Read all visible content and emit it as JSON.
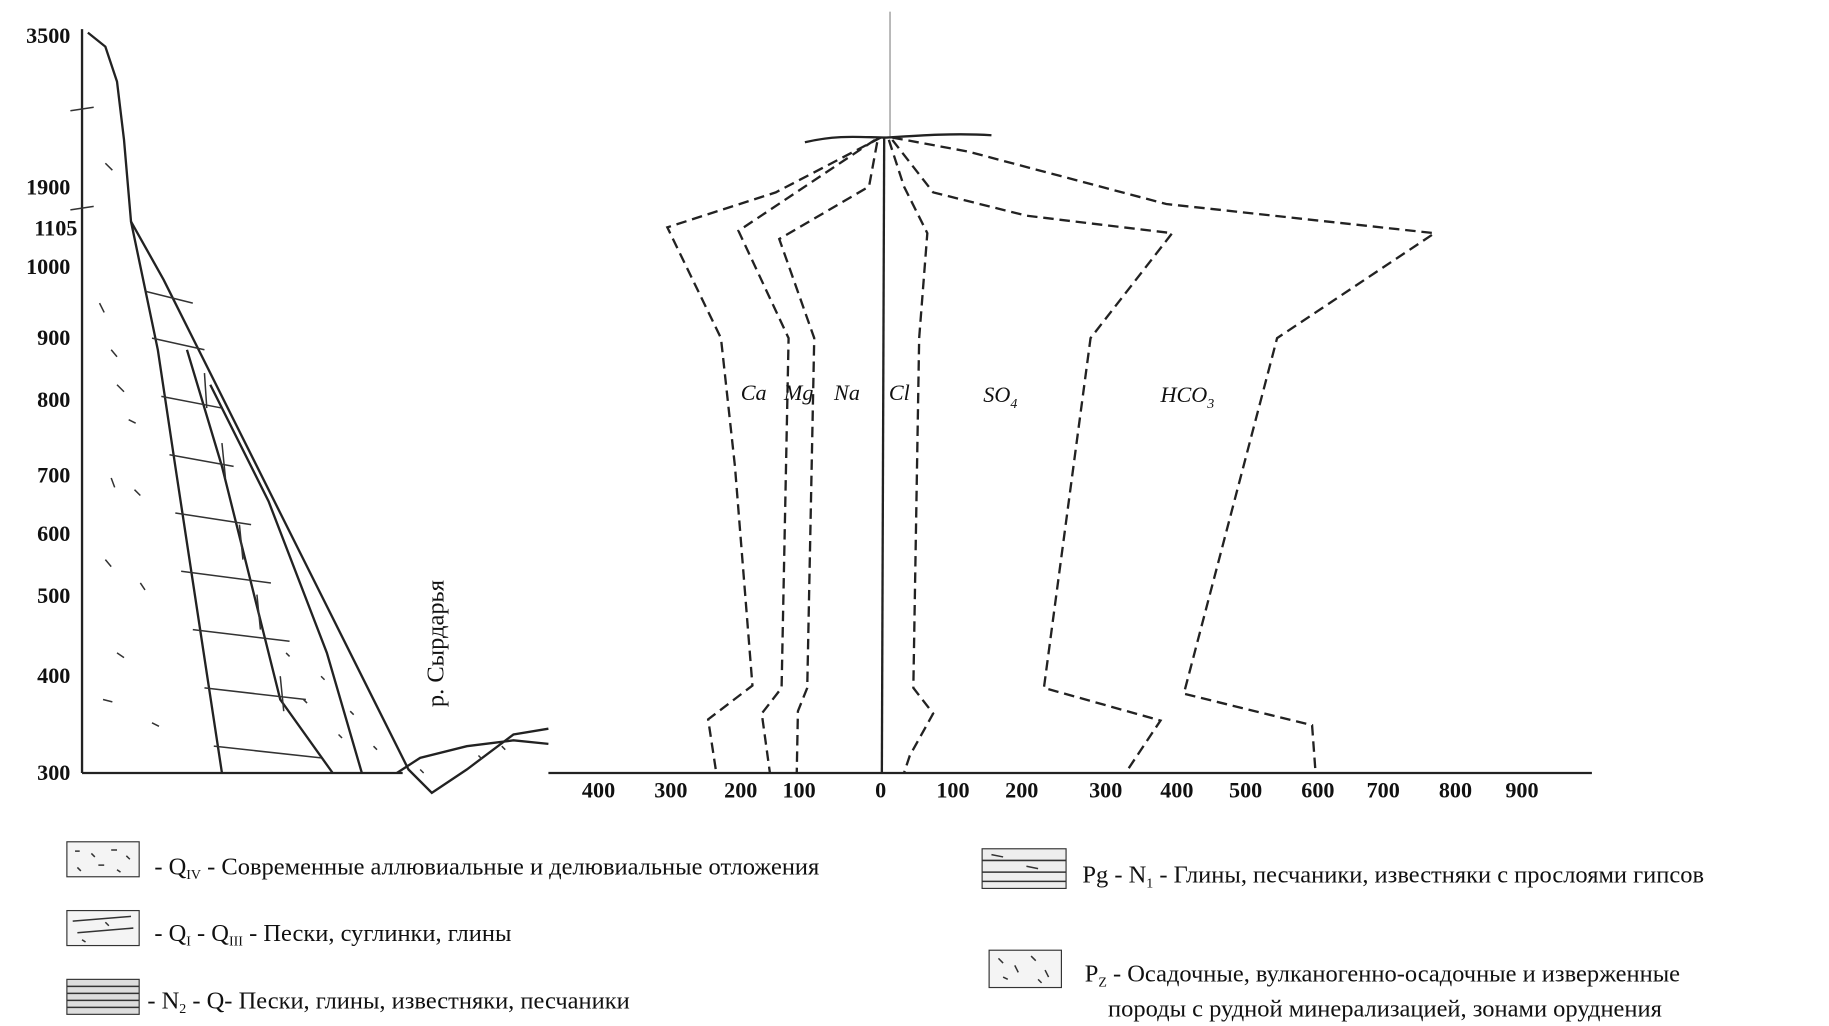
{
  "left_axis": {
    "labels": [
      "3500",
      "1900",
      "1105",
      "1000",
      "900",
      "800",
      "700",
      "600",
      "500",
      "400",
      "300"
    ]
  },
  "bottom_axis": {
    "labels": [
      "400",
      "300",
      "200",
      "100",
      "0",
      "100",
      "200",
      "300",
      "400",
      "500",
      "600",
      "700",
      "800",
      "900"
    ]
  },
  "ions": [
    {
      "text": "Ca"
    },
    {
      "text": "Mg"
    },
    {
      "text": "Na"
    },
    {
      "text": "Cl"
    },
    {
      "text": "SO",
      "sub": "4"
    },
    {
      "text": "HCO",
      "sub": "3"
    }
  ],
  "river": "р. Сырдарья",
  "legend": [
    {
      "segments": [
        {
          "text": "- Q"
        },
        {
          "sub": "IV"
        },
        {
          "text": " - Современные аллювиальные и делювиальные отложения"
        }
      ]
    },
    {
      "segments": [
        {
          "text": "- Q"
        },
        {
          "sub": "I"
        },
        {
          "text": " - Q"
        },
        {
          "sub": "III"
        },
        {
          "text": " - Пески, суглинки, глины"
        }
      ]
    },
    {
      "segments": [
        {
          "text": "- N"
        },
        {
          "sub": "2"
        },
        {
          "text": " - Q- Пески, глины, известняки, песчаники"
        }
      ]
    },
    {
      "segments": [
        {
          "text": "Pg - N"
        },
        {
          "sub": "1"
        },
        {
          "text": " - Глины, песчаники, известняки с прослоями гипсов"
        }
      ]
    },
    {
      "segments": [
        {
          "text": "P"
        },
        {
          "sub": "Z"
        },
        {
          "text": " - Осадочные, вулканогенно-осадочные и изверженные"
        }
      ],
      "line2": "породы с рудной минерализацией, зонами оруднения"
    }
  ]
}
